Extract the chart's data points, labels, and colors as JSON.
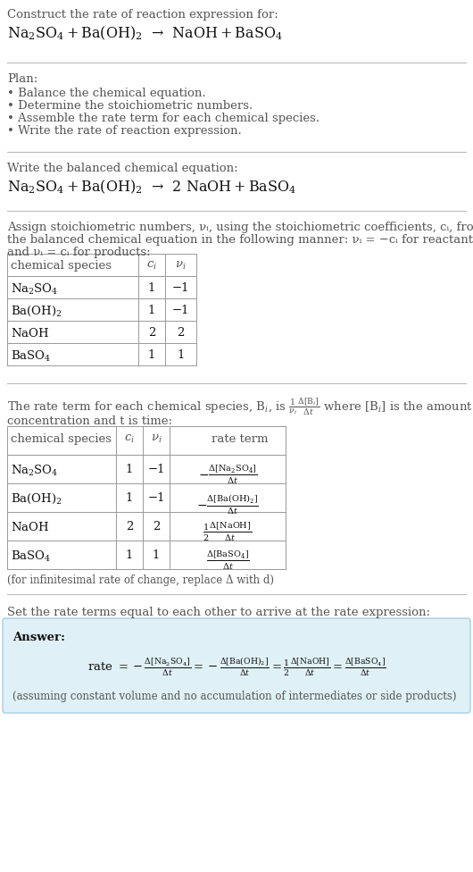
{
  "title": "Construct the rate of reaction expression for:",
  "plan_title": "Plan:",
  "plan_items": [
    "• Balance the chemical equation.",
    "• Determine the stoichiometric numbers.",
    "• Assemble the rate term for each chemical species.",
    "• Write the rate of reaction expression."
  ],
  "balanced_label": "Write the balanced chemical equation:",
  "stoich_line1": "Assign stoichiometric numbers, νᵢ, using the stoichiometric coefficients, cᵢ, from",
  "stoich_line2": "the balanced chemical equation in the following manner: νᵢ = −cᵢ for reactants",
  "stoich_line3": "and νᵢ = cᵢ for products:",
  "infinitesimal_note": "(for infinitesimal rate of change, replace Δ with d)",
  "set_equal_text": "Set the rate terms equal to each other to arrive at the rate expression:",
  "answer_label": "Answer:",
  "answer_note": "(assuming constant volume and no accumulation of intermediates or side products)",
  "bg_color": "#ffffff",
  "answer_box_color": "#dff0f7",
  "answer_box_border": "#a8cfe0",
  "separator_color": "#bbbbbb",
  "table_line_color": "#999999",
  "text_color": "#1a1a1a",
  "gray_color": "#555555"
}
